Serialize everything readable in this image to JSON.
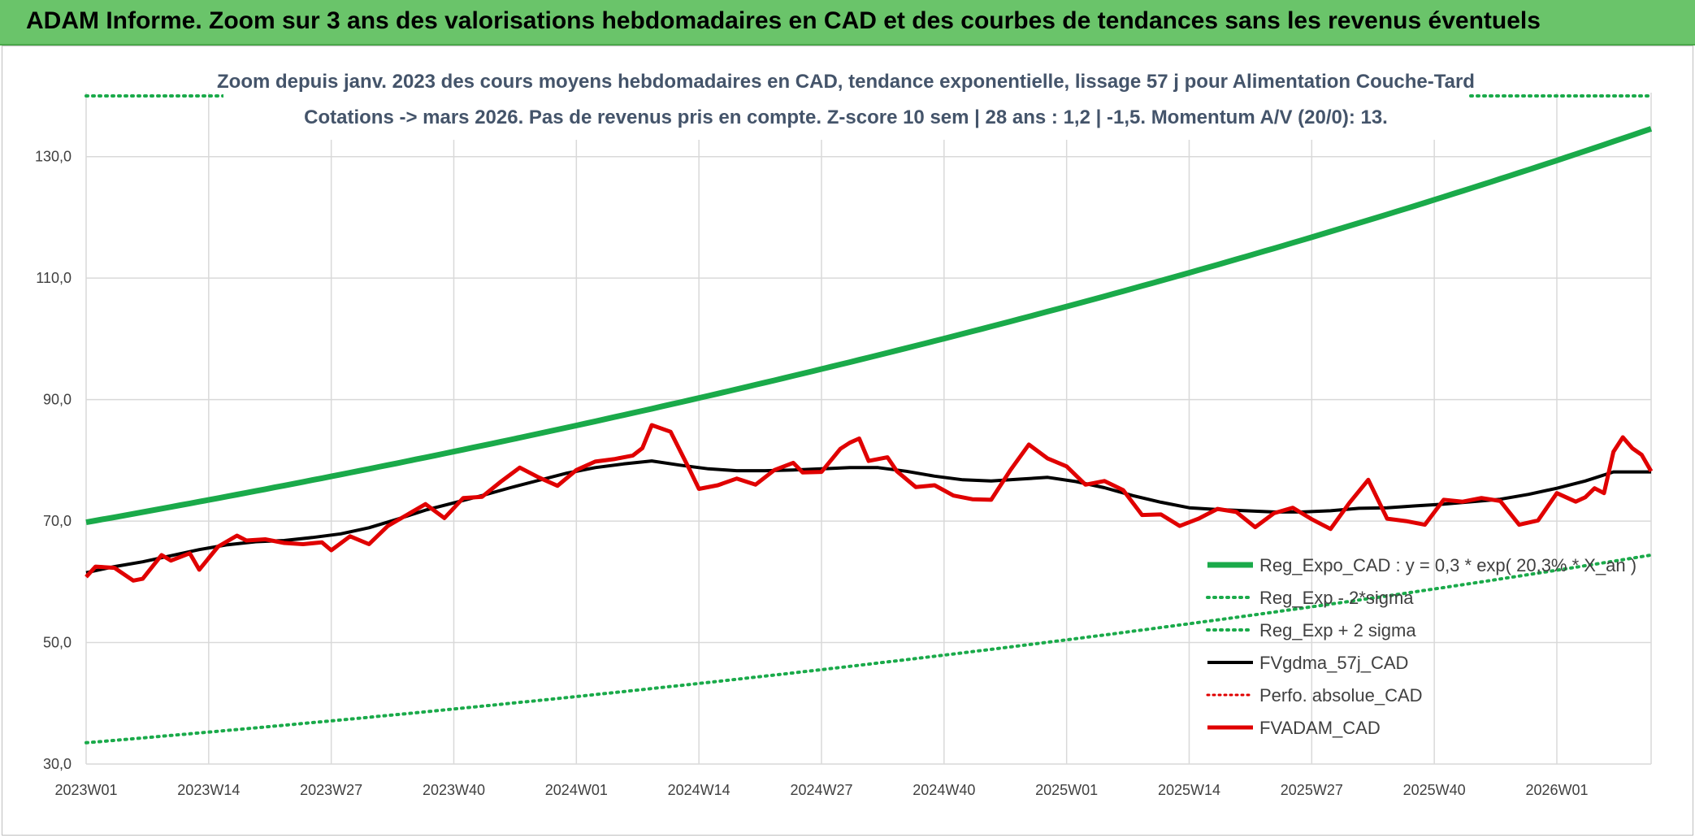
{
  "banner": {
    "title": "ADAM Informe. Zoom sur 3 ans des valorisations hebdomadaires en CAD et des courbes de tendances sans les revenus éventuels"
  },
  "chart_data": {
    "type": "line",
    "title_line1": "Zoom depuis janv. 2023 des cours moyens hebdomadaires en CAD, tendance exponentielle, lissage 57 j pour Alimentation Couche-Tard",
    "title_line2": "Cotations -> mars 2026. Pas de revenus pris en compte. Z-score 10 sem | 28 ans : 1,2 | -1,5. Momentum A/V (20/0): 13.",
    "xlabel": "",
    "ylabel": "",
    "ylim": [
      30,
      140
    ],
    "yticks": [
      "30,0",
      "50,0",
      "70,0",
      "90,0",
      "110,0",
      "130,0"
    ],
    "xticks": [
      "2023W01",
      "2023W14",
      "2023W27",
      "2023W40",
      "2024W01",
      "2024W14",
      "2024W27",
      "2024W40",
      "2025W01",
      "2025W14",
      "2025W27",
      "2025W40",
      "2026W01"
    ],
    "grid": true,
    "legend_position": "bottom-right",
    "x_start": "2023W01",
    "x_end": "2026W11",
    "colors": {
      "expo": "#1aaa4a",
      "sigma": "#1aaa4a",
      "gdma": "#000000",
      "perfo": "#e00000",
      "fvadam": "#e00000",
      "grid": "#d9d9d9"
    },
    "series": [
      {
        "name": "Reg_Expo_CAD : y = 0,3 * exp( 20,3% * X_an )",
        "style": "solid-thick",
        "x": [
          "2023W01",
          "2026W11"
        ],
        "values": [
          69.8,
          134.6
        ]
      },
      {
        "name": "Reg_Exp - 2*sigma",
        "style": "dotted",
        "x": [
          "2023W01",
          "2026W11"
        ],
        "values": [
          33.5,
          64.4
        ]
      },
      {
        "name": "Reg_Exp + 2 sigma",
        "style": "dotted",
        "x": [
          "2023W01",
          "2026W11"
        ],
        "values": [
          140.0,
          140.0
        ]
      },
      {
        "name": "FVgdma_57j_CAD",
        "style": "solid",
        "x": [
          "2023W01",
          "2023W04",
          "2023W07",
          "2023W10",
          "2023W13",
          "2023W16",
          "2023W19",
          "2023W22",
          "2023W25",
          "2023W28",
          "2023W31",
          "2023W34",
          "2023W37",
          "2023W40",
          "2023W43",
          "2023W46",
          "2023W49",
          "2023W52",
          "2024W03",
          "2024W06",
          "2024W09",
          "2024W12",
          "2024W15",
          "2024W18",
          "2024W21",
          "2024W24",
          "2024W27",
          "2024W30",
          "2024W33",
          "2024W36",
          "2024W39",
          "2024W42",
          "2024W45",
          "2024W48",
          "2024W51",
          "2025W02",
          "2025W05",
          "2025W08",
          "2025W11",
          "2025W14",
          "2025W17",
          "2025W20",
          "2025W23",
          "2025W26",
          "2025W29",
          "2025W32",
          "2025W35",
          "2025W38",
          "2025W41",
          "2025W44",
          "2025W47",
          "2025W50",
          "2026W01",
          "2026W04",
          "2026W07",
          "2026W11"
        ],
        "values": [
          61.5,
          62.5,
          63.3,
          64.3,
          65.3,
          66.1,
          66.6,
          66.8,
          67.3,
          67.9,
          68.9,
          70.3,
          71.8,
          73.0,
          74.2,
          75.5,
          76.7,
          77.9,
          78.8,
          79.4,
          79.9,
          79.2,
          78.6,
          78.3,
          78.3,
          78.4,
          78.6,
          78.8,
          78.8,
          78.2,
          77.4,
          76.8,
          76.6,
          76.9,
          77.2,
          76.5,
          75.5,
          74.2,
          73.1,
          72.2,
          71.9,
          71.7,
          71.5,
          71.5,
          71.7,
          72.1,
          72.2,
          72.5,
          72.8,
          73.2,
          73.6,
          74.4,
          75.4,
          76.6,
          78.1,
          78.1
        ]
      },
      {
        "name": "Perfo. absolue_CAD",
        "style": "dotted",
        "x": [],
        "values": []
      },
      {
        "name": "FVADAM_CAD",
        "style": "solid-thick",
        "x": [
          "2023W01",
          "2023W02",
          "2023W04",
          "2023W06",
          "2023W07",
          "2023W09",
          "2023W10",
          "2023W12",
          "2023W13",
          "2023W15",
          "2023W17",
          "2023W18",
          "2023W20",
          "2023W22",
          "2023W24",
          "2023W26",
          "2023W27",
          "2023W29",
          "2023W31",
          "2023W33",
          "2023W35",
          "2023W37",
          "2023W39",
          "2023W41",
          "2023W43",
          "2023W45",
          "2023W47",
          "2023W49",
          "2023W51",
          "2024W01",
          "2024W03",
          "2024W05",
          "2024W07",
          "2024W08",
          "2024W09",
          "2024W11",
          "2024W13",
          "2024W14",
          "2024W16",
          "2024W18",
          "2024W20",
          "2024W22",
          "2024W24",
          "2024W25",
          "2024W27",
          "2024W29",
          "2024W30",
          "2024W31",
          "2024W32",
          "2024W34",
          "2024W35",
          "2024W37",
          "2024W39",
          "2024W41",
          "2024W43",
          "2024W45",
          "2024W47",
          "2024W49",
          "2024W51",
          "2025W01",
          "2025W03",
          "2025W05",
          "2025W07",
          "2025W09",
          "2025W11",
          "2025W13",
          "2025W15",
          "2025W17",
          "2025W19",
          "2025W21",
          "2025W23",
          "2025W25",
          "2025W27",
          "2025W29",
          "2025W31",
          "2025W33",
          "2025W35",
          "2025W37",
          "2025W39",
          "2025W41",
          "2025W43",
          "2025W45",
          "2025W47",
          "2025W49",
          "2025W51",
          "2026W01",
          "2026W03",
          "2026W04",
          "2026W05",
          "2026W06",
          "2026W07",
          "2026W08",
          "2026W09",
          "2026W10",
          "2026W11"
        ],
        "values": [
          60.8,
          62.5,
          62.3,
          60.2,
          60.5,
          64.4,
          63.5,
          64.7,
          62.0,
          65.8,
          67.6,
          66.8,
          67.0,
          66.4,
          66.2,
          66.5,
          65.2,
          67.5,
          66.2,
          69.2,
          71.0,
          72.8,
          70.5,
          73.8,
          74.0,
          76.5,
          78.8,
          77.2,
          75.8,
          78.4,
          79.8,
          80.2,
          80.8,
          82.0,
          85.8,
          84.7,
          78.5,
          75.3,
          75.9,
          77.0,
          76.0,
          78.4,
          79.6,
          78.0,
          78.1,
          81.9,
          82.9,
          83.6,
          79.9,
          80.5,
          78.2,
          75.6,
          75.9,
          74.2,
          73.6,
          73.5,
          78.3,
          82.6,
          80.3,
          79.0,
          76.0,
          76.6,
          75.1,
          71.0,
          71.1,
          69.2,
          70.4,
          72.0,
          71.5,
          69.0,
          71.3,
          72.2,
          70.3,
          68.7,
          73.0,
          76.8,
          70.4,
          70.0,
          69.4,
          73.5,
          73.2,
          73.8,
          73.3,
          69.4,
          70.1,
          74.6,
          73.2,
          73.9,
          75.4,
          74.6,
          81.4,
          83.8,
          82.0,
          80.9,
          78.2
        ]
      }
    ]
  }
}
